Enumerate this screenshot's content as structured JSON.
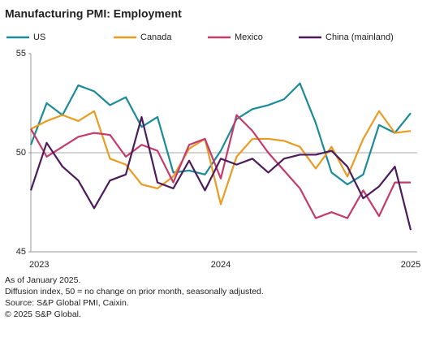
{
  "chart_data": {
    "type": "line",
    "title": "Manufacturing PMI: Employment",
    "categories": [
      "2023",
      null,
      null,
      null,
      null,
      null,
      null,
      null,
      null,
      null,
      null,
      null,
      "2024",
      null,
      null,
      null,
      null,
      null,
      null,
      null,
      null,
      null,
      null,
      null,
      "2025"
    ],
    "series": [
      {
        "name": "US",
        "color": "#1b8a99",
        "values": [
          50.4,
          52.5,
          51.9,
          53.4,
          53.1,
          52.4,
          52.8,
          51.3,
          51.8,
          49.0,
          49.1,
          48.9,
          50.1,
          51.7,
          52.2,
          52.4,
          52.7,
          53.5,
          51.5,
          49.0,
          48.4,
          48.9,
          51.4,
          51.0,
          52.0
        ]
      },
      {
        "name": "Canada",
        "color": "#e99b22",
        "values": [
          51.2,
          51.6,
          51.9,
          51.6,
          52.1,
          49.7,
          49.4,
          48.4,
          48.2,
          48.8,
          50.2,
          50.7,
          47.4,
          49.8,
          50.7,
          50.7,
          50.6,
          50.3,
          49.2,
          50.3,
          48.8,
          50.7,
          52.1,
          51.0,
          51.1
        ]
      },
      {
        "name": "Mexico",
        "color": "#c53a6b",
        "values": [
          51.2,
          49.8,
          50.3,
          50.8,
          51.0,
          50.9,
          49.8,
          50.4,
          50.1,
          48.5,
          50.4,
          50.7,
          48.7,
          51.9,
          51.1,
          50.0,
          49.1,
          48.2,
          46.7,
          47.0,
          46.7,
          48.1,
          46.8,
          48.5,
          48.5
        ]
      },
      {
        "name": "China (mainland)",
        "color": "#4b1b5b",
        "values": [
          48.1,
          50.5,
          49.3,
          48.6,
          47.2,
          48.6,
          48.9,
          51.8,
          48.5,
          48.2,
          49.6,
          48.1,
          49.7,
          49.4,
          49.7,
          49.0,
          49.7,
          49.9,
          49.9,
          50.1,
          49.3,
          47.7,
          48.3,
          49.3,
          46.1
        ]
      }
    ],
    "ylim": [
      45,
      55
    ],
    "yticks": [
      45,
      50,
      55
    ],
    "reference_line": 50,
    "notes": [
      "As of January 2025.",
      "Diffusion index, 50 = no change on prior month, seasonally adjusted.",
      "Source: S&P Global PMI, Caixin.",
      "© 2025 S&P Global."
    ]
  }
}
